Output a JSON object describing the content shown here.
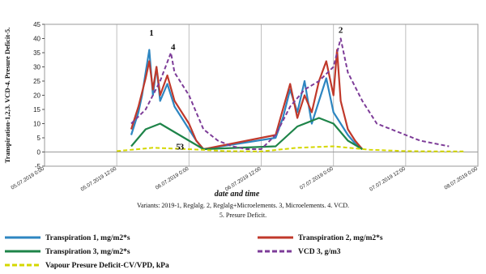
{
  "chart_data": {
    "type": "line",
    "ylabel": "Transpiration-1,2,3. VCD-4. Presure Deficit-5.",
    "xlabel": "date and time",
    "caption_line1": "Variants: 2019-1, Reglalg. 2, Reglalg+Microelements. 3, Microelements. 4. VCD.",
    "caption_line2": "5. Presure Deficit.",
    "ylim": [
      -5,
      45
    ],
    "yticks": [
      "-5",
      "0",
      "5",
      "10",
      "15",
      "20",
      "25",
      "30",
      "35",
      "40",
      "45"
    ],
    "y_tick_values": [
      -5,
      0,
      5,
      10,
      15,
      20,
      25,
      30,
      35,
      40,
      45
    ],
    "xlim": [
      0,
      6
    ],
    "xticks": [
      "05.07.2019 0:00",
      "05.07.2019 12:00",
      "06.07.2019 0:00",
      "06.07.2019 12:00",
      "07.07.2019 0:00",
      "07.07.2019 12:00",
      "08.07.2019 0:00"
    ],
    "grid": "vertical",
    "annotations": [
      {
        "text": "1",
        "x": 1.48,
        "y": 41
      },
      {
        "text": "4",
        "x": 1.78,
        "y": 36
      },
      {
        "text": "5",
        "x": 1.85,
        "y": 0.8
      },
      {
        "text": "3",
        "x": 1.9,
        "y": 0.8
      },
      {
        "text": "2",
        "x": 4.1,
        "y": 42
      }
    ],
    "series": [
      {
        "name": "Transpiration 1, mg/m2*s",
        "color": "#2e86c1",
        "dash": "solid",
        "x": [
          1.2,
          1.3,
          1.35,
          1.4,
          1.45,
          1.5,
          1.55,
          1.6,
          1.7,
          1.8,
          1.9,
          2.0,
          2.1,
          2.2,
          3.2,
          3.3,
          3.4,
          3.5,
          3.6,
          3.7,
          3.8,
          3.9,
          4.0,
          4.1,
          4.2,
          4.3,
          4.4
        ],
        "y": [
          6,
          14,
          20,
          28,
          36,
          20,
          30,
          18,
          24,
          16,
          12,
          8,
          4,
          1,
          5,
          12,
          22,
          14,
          25,
          10,
          18,
          26,
          14,
          10,
          6,
          3,
          1
        ]
      },
      {
        "name": "Transpiration 2, mg/m2*s",
        "color": "#c0392b",
        "dash": "solid",
        "x": [
          1.2,
          1.3,
          1.4,
          1.45,
          1.5,
          1.55,
          1.6,
          1.7,
          1.8,
          1.9,
          2.0,
          2.1,
          2.2,
          3.2,
          3.3,
          3.4,
          3.5,
          3.6,
          3.7,
          3.8,
          3.9,
          4.0,
          4.05,
          4.1,
          4.2,
          4.3,
          4.4
        ],
        "y": [
          8,
          16,
          26,
          32,
          22,
          30,
          20,
          27,
          18,
          14,
          10,
          4,
          1,
          6,
          15,
          24,
          12,
          20,
          14,
          25,
          32,
          20,
          36,
          18,
          8,
          4,
          1
        ]
      },
      {
        "name": "Transpiration 3, mg/m2*s",
        "color": "#1e8449",
        "dash": "solid",
        "x": [
          1.2,
          1.4,
          1.6,
          1.8,
          2.0,
          2.2,
          3.2,
          3.5,
          3.8,
          4.0,
          4.2,
          4.4
        ],
        "y": [
          2,
          8,
          10,
          7,
          4,
          1,
          2,
          9,
          12,
          10,
          4,
          1
        ]
      },
      {
        "name": "VCD 3, g/m3",
        "color": "#7d3c98",
        "dash": "dashed",
        "x": [
          1.2,
          1.4,
          1.6,
          1.75,
          1.8,
          2.0,
          2.2,
          2.4,
          2.6,
          2.8,
          3.0,
          3.2,
          3.4,
          3.6,
          3.8,
          4.0,
          4.1,
          4.15,
          4.2,
          4.4,
          4.6,
          4.8,
          5.0,
          5.2,
          5.4,
          5.6
        ],
        "y": [
          10,
          15,
          25,
          35,
          28,
          20,
          8,
          4,
          2,
          1,
          1,
          6,
          16,
          22,
          25,
          30,
          40,
          34,
          28,
          18,
          10,
          8,
          6,
          4,
          3,
          2
        ]
      },
      {
        "name": "Vapour Presure Deficit-CV/VPD, kPa",
        "color": "#d4d700",
        "dash": "dashed",
        "x": [
          1.0,
          1.5,
          2.0,
          2.5,
          3.0,
          3.5,
          4.0,
          4.5,
          5.0,
          5.5,
          5.8
        ],
        "y": [
          0.3,
          1.5,
          1.0,
          0.3,
          0.2,
          1.5,
          2.0,
          0.8,
          0.3,
          0.2,
          0.2
        ]
      }
    ]
  }
}
